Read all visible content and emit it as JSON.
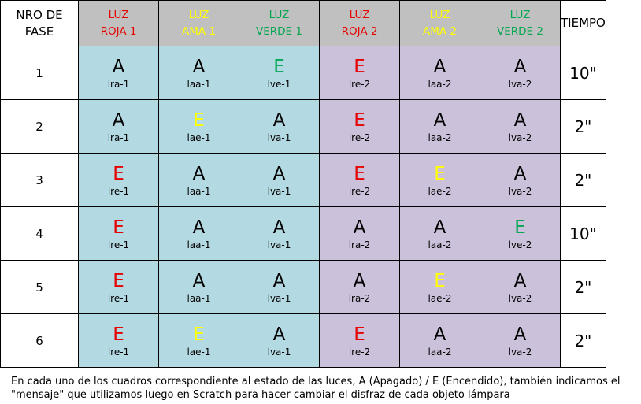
{
  "colors": {
    "header_bg": "#c0c0c0",
    "group1_bg": "#b3d9e2",
    "group2_bg": "#ccc1da",
    "red": "#e60000",
    "yellow": "#ffff00",
    "green": "#00a650",
    "black": "#000000",
    "white": "#ffffff",
    "border": "#000000"
  },
  "table": {
    "headers": [
      {
        "lines": [
          "NRO DE",
          "FASE"
        ],
        "color": "#000000",
        "bg": "#ffffff"
      },
      {
        "lines": [
          "LUZ",
          "ROJA 1"
        ],
        "color": "#e60000",
        "bg": "#c0c0c0"
      },
      {
        "lines": [
          "LUZ",
          "AMA 1"
        ],
        "color": "#ffff00",
        "bg": "#c0c0c0"
      },
      {
        "lines": [
          "LUZ",
          "VERDE 1"
        ],
        "color": "#00a650",
        "bg": "#c0c0c0"
      },
      {
        "lines": [
          "LUZ",
          "ROJA 2"
        ],
        "color": "#e60000",
        "bg": "#c0c0c0"
      },
      {
        "lines": [
          "LUZ",
          "AMA 2"
        ],
        "color": "#ffff00",
        "bg": "#c0c0c0"
      },
      {
        "lines": [
          "LUZ",
          "VERDE 2"
        ],
        "color": "#00a650",
        "bg": "#c0c0c0"
      },
      {
        "lines": [
          "TIEMPO"
        ],
        "color": "#000000",
        "bg": "#ffffff"
      }
    ],
    "rows": [
      {
        "fase": "1",
        "tiempo": "10\"",
        "cells": [
          {
            "state": "A",
            "msg": "lra-1",
            "color": "#000000"
          },
          {
            "state": "A",
            "msg": "laa-1",
            "color": "#000000"
          },
          {
            "state": "E",
            "msg": "lve-1",
            "color": "#00a650"
          },
          {
            "state": "E",
            "msg": "lre-2",
            "color": "#e60000"
          },
          {
            "state": "A",
            "msg": "laa-2",
            "color": "#000000"
          },
          {
            "state": "A",
            "msg": "lva-2",
            "color": "#000000"
          }
        ]
      },
      {
        "fase": "2",
        "tiempo": "2\"",
        "cells": [
          {
            "state": "A",
            "msg": "lra-1",
            "color": "#000000"
          },
          {
            "state": "E",
            "msg": "lae-1",
            "color": "#ffff00"
          },
          {
            "state": "A",
            "msg": "lva-1",
            "color": "#000000"
          },
          {
            "state": "E",
            "msg": "lre-2",
            "color": "#e60000"
          },
          {
            "state": "A",
            "msg": "laa-2",
            "color": "#000000"
          },
          {
            "state": "A",
            "msg": "lva-2",
            "color": "#000000"
          }
        ]
      },
      {
        "fase": "3",
        "tiempo": "2\"",
        "cells": [
          {
            "state": "E",
            "msg": "lre-1",
            "color": "#e60000"
          },
          {
            "state": "A",
            "msg": "laa-1",
            "color": "#000000"
          },
          {
            "state": "A",
            "msg": "lva-1",
            "color": "#000000"
          },
          {
            "state": "E",
            "msg": "lre-2",
            "color": "#e60000"
          },
          {
            "state": "E",
            "msg": "lae-2",
            "color": "#ffff00"
          },
          {
            "state": "A",
            "msg": "lva-2",
            "color": "#000000"
          }
        ]
      },
      {
        "fase": "4",
        "tiempo": "10\"",
        "cells": [
          {
            "state": "E",
            "msg": "lre-1",
            "color": "#e60000"
          },
          {
            "state": "A",
            "msg": "laa-1",
            "color": "#000000"
          },
          {
            "state": "A",
            "msg": "lva-1",
            "color": "#000000"
          },
          {
            "state": "A",
            "msg": "lra-2",
            "color": "#000000"
          },
          {
            "state": "A",
            "msg": "laa-2",
            "color": "#000000"
          },
          {
            "state": "E",
            "msg": "lve-2",
            "color": "#00a650"
          }
        ]
      },
      {
        "fase": "5",
        "tiempo": "2\"",
        "cells": [
          {
            "state": "E",
            "msg": "lre-1",
            "color": "#e60000"
          },
          {
            "state": "A",
            "msg": "laa-1",
            "color": "#000000"
          },
          {
            "state": "A",
            "msg": "lva-1",
            "color": "#000000"
          },
          {
            "state": "A",
            "msg": "lra-2",
            "color": "#000000"
          },
          {
            "state": "E",
            "msg": "lae-2",
            "color": "#ffff00"
          },
          {
            "state": "A",
            "msg": "lva-2",
            "color": "#000000"
          }
        ]
      },
      {
        "fase": "6",
        "tiempo": "2\"",
        "cells": [
          {
            "state": "E",
            "msg": "lre-1",
            "color": "#e60000"
          },
          {
            "state": "E",
            "msg": "lae-1",
            "color": "#ffff00"
          },
          {
            "state": "A",
            "msg": "lva-1",
            "color": "#000000"
          },
          {
            "state": "E",
            "msg": "lre-2",
            "color": "#e60000"
          },
          {
            "state": "A",
            "msg": "laa-2",
            "color": "#000000"
          },
          {
            "state": "A",
            "msg": "lva-2",
            "color": "#000000"
          }
        ]
      }
    ]
  },
  "caption": "En cada uno de los cuadros correspondiente al estado de las luces, A (Apagado) / E (Encendido), también indicamos el \"mensaje\" que utilizamos luego en Scratch para hacer cambiar el disfraz de cada objeto lámpara"
}
